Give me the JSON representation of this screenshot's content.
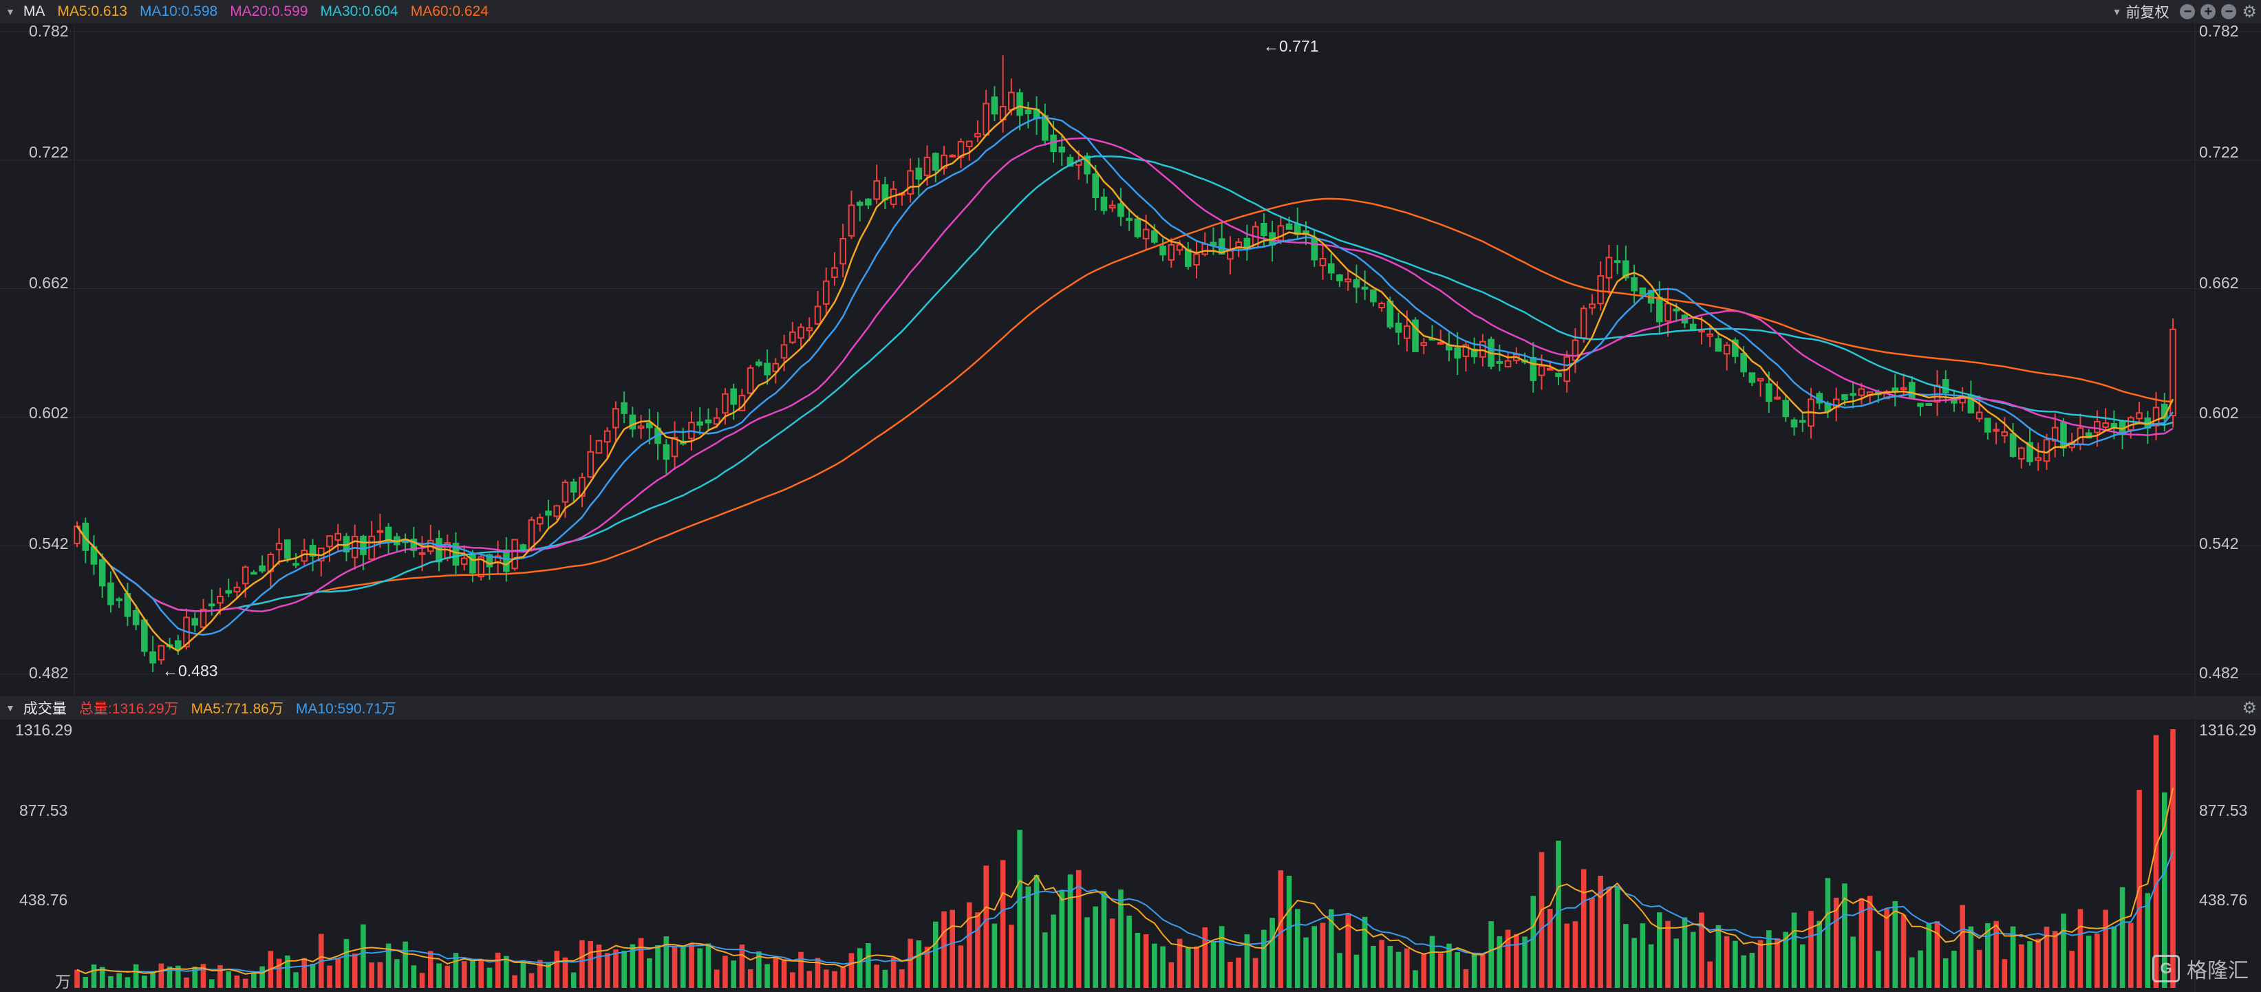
{
  "main_header": {
    "title": "MA",
    "items": [
      {
        "label": "MA5:0.613",
        "color": "#f5a623"
      },
      {
        "label": "MA10:0.598",
        "color": "#3a9cf0"
      },
      {
        "label": "MA20:0.599",
        "color": "#e545c4"
      },
      {
        "label": "MA30:0.604",
        "color": "#29c5d6"
      },
      {
        "label": "MA60:0.624",
        "color": "#ff6a1f"
      }
    ],
    "adjust_label": "前复权"
  },
  "price_axis": {
    "ticks": [
      "0.782",
      "0.722",
      "0.662",
      "0.602",
      "0.542",
      "0.482"
    ]
  },
  "annotations": {
    "high": "←0.771",
    "low": "←0.483"
  },
  "volume_header": {
    "title": "成交量",
    "items": [
      {
        "label": "总量:1316.29万",
        "color": "#f0403c"
      },
      {
        "label": "MA5:771.86万",
        "color": "#f5a623"
      },
      {
        "label": "MA10:590.71万",
        "color": "#3a9cf0"
      }
    ]
  },
  "volume_axis": {
    "ticks": [
      "1316.29",
      "877.53",
      "438.76"
    ],
    "unit": "万"
  },
  "colors": {
    "up": "#f0403c",
    "down": "#22b85a",
    "background": "#1b1c21"
  },
  "icons": [
    "collapse-triangle-icon",
    "minus-icon",
    "plus-icon",
    "gear-icon"
  ],
  "logo_text": "格隆汇",
  "chart_data": {
    "type": "candlestick",
    "price_ylim": [
      0.482,
      0.782
    ],
    "volume_ylim": [
      0,
      1316.29
    ],
    "high": 0.771,
    "low": 0.483,
    "ma_last": {
      "MA5": 0.613,
      "MA10": 0.598,
      "MA20": 0.599,
      "MA30": 0.604,
      "MA60": 0.624
    },
    "volume_last": 1316.29,
    "volume_ma_last": {
      "MA5": 771.86,
      "MA10": 590.71
    }
  }
}
